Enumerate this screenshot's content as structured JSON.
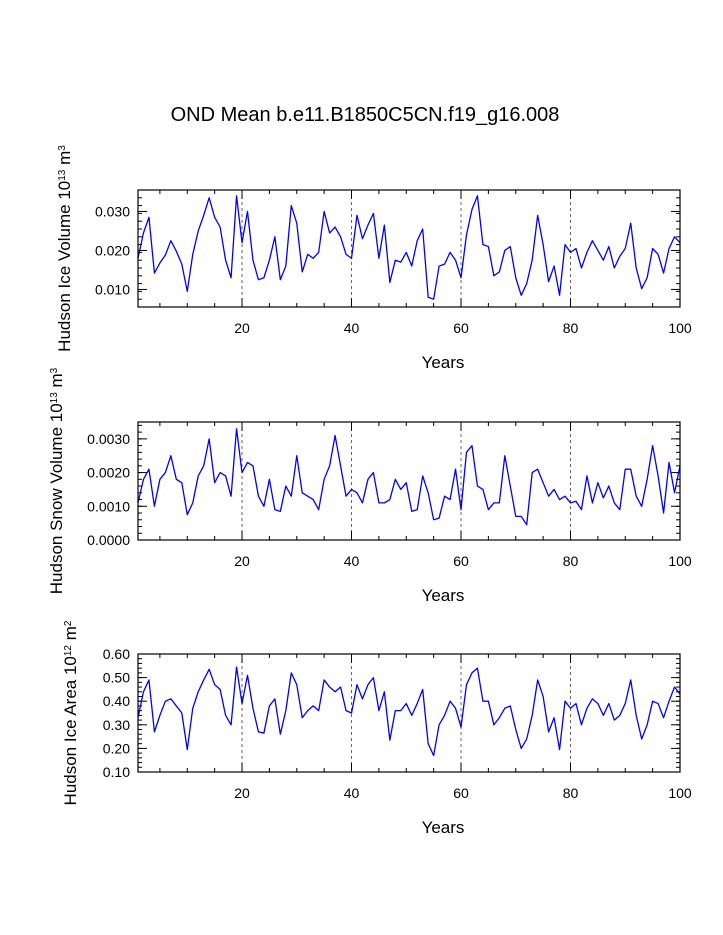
{
  "title": "OND Mean b.e11.B1850C5CN.f19_g16.008",
  "chart_data": [
    {
      "type": "line",
      "series": [
        {
          "name": "Hudson Ice Volume",
          "color": "#0000ff"
        }
      ],
      "ylabel_parts": [
        {
          "text": "Hudson Ice Volume 10"
        },
        {
          "text": "13",
          "sup": true
        },
        {
          "text": " m"
        },
        {
          "text": "3",
          "sup": true
        }
      ],
      "xlabel": "Years",
      "xlim": [
        1,
        100
      ],
      "ylim": [
        0.0055,
        0.0355
      ],
      "xticks": [
        20,
        40,
        60,
        80,
        100
      ],
      "xtick_labels": [
        "20",
        "40",
        "60",
        "80",
        "100"
      ],
      "yticks": [
        0.01,
        0.02,
        0.03
      ],
      "ytick_labels": [
        "0.010",
        "0.020",
        "0.030"
      ],
      "x": [
        1,
        2,
        3,
        4,
        5,
        6,
        7,
        8,
        9,
        10,
        11,
        12,
        13,
        14,
        15,
        16,
        17,
        18,
        19,
        20,
        21,
        22,
        23,
        24,
        25,
        26,
        27,
        28,
        29,
        30,
        31,
        32,
        33,
        34,
        35,
        36,
        37,
        38,
        39,
        40,
        41,
        42,
        43,
        44,
        45,
        46,
        47,
        48,
        49,
        50,
        51,
        52,
        53,
        54,
        55,
        56,
        57,
        58,
        59,
        60,
        61,
        62,
        63,
        64,
        65,
        66,
        67,
        68,
        69,
        70,
        71,
        72,
        73,
        74,
        75,
        76,
        77,
        78,
        79,
        80,
        81,
        82,
        83,
        84,
        85,
        86,
        87,
        88,
        89,
        90,
        91,
        92,
        93,
        94,
        95,
        96,
        97,
        98,
        99,
        100
      ],
      "values": [
        0.018,
        0.0245,
        0.0285,
        0.0142,
        0.0168,
        0.0188,
        0.0225,
        0.0198,
        0.0165,
        0.0095,
        0.019,
        0.025,
        0.029,
        0.0335,
        0.0285,
        0.026,
        0.0175,
        0.013,
        0.034,
        0.022,
        0.03,
        0.0175,
        0.0125,
        0.013,
        0.0175,
        0.0235,
        0.0125,
        0.016,
        0.0315,
        0.027,
        0.0145,
        0.019,
        0.018,
        0.0195,
        0.03,
        0.0245,
        0.026,
        0.0235,
        0.019,
        0.018,
        0.029,
        0.023,
        0.0265,
        0.0295,
        0.018,
        0.0265,
        0.0118,
        0.0175,
        0.017,
        0.0195,
        0.016,
        0.0225,
        0.0255,
        0.008,
        0.0075,
        0.016,
        0.0165,
        0.0195,
        0.0175,
        0.013,
        0.024,
        0.0305,
        0.034,
        0.0215,
        0.021,
        0.0135,
        0.0145,
        0.02,
        0.021,
        0.013,
        0.0085,
        0.0115,
        0.0175,
        0.029,
        0.0215,
        0.012,
        0.016,
        0.0085,
        0.0215,
        0.0195,
        0.0205,
        0.0155,
        0.0195,
        0.0225,
        0.02,
        0.0175,
        0.021,
        0.0155,
        0.0185,
        0.0205,
        0.027,
        0.0155,
        0.0102,
        0.013,
        0.0205,
        0.019,
        0.0142,
        0.0205,
        0.0235,
        0.022
      ]
    },
    {
      "type": "line",
      "series": [
        {
          "name": "Hudson Snow Volume",
          "color": "#0000ff"
        }
      ],
      "ylabel_parts": [
        {
          "text": "Hudson Snow Volume 10"
        },
        {
          "text": "13",
          "sup": true
        },
        {
          "text": " m"
        },
        {
          "text": "3",
          "sup": true
        }
      ],
      "xlabel": "Years",
      "xlim": [
        1,
        100
      ],
      "ylim": [
        0.0,
        0.0035
      ],
      "xticks": [
        20,
        40,
        60,
        80,
        100
      ],
      "xtick_labels": [
        "20",
        "40",
        "60",
        "80",
        "100"
      ],
      "yticks": [
        0.0,
        0.001,
        0.002,
        0.003
      ],
      "ytick_labels": [
        "0.0000",
        "0.0010",
        "0.0020",
        "0.0030"
      ],
      "x": [
        1,
        2,
        3,
        4,
        5,
        6,
        7,
        8,
        9,
        10,
        11,
        12,
        13,
        14,
        15,
        16,
        17,
        18,
        19,
        20,
        21,
        22,
        23,
        24,
        25,
        26,
        27,
        28,
        29,
        30,
        31,
        32,
        33,
        34,
        35,
        36,
        37,
        38,
        39,
        40,
        41,
        42,
        43,
        44,
        45,
        46,
        47,
        48,
        49,
        50,
        51,
        52,
        53,
        54,
        55,
        56,
        57,
        58,
        59,
        60,
        61,
        62,
        63,
        64,
        65,
        66,
        67,
        68,
        69,
        70,
        71,
        72,
        73,
        74,
        75,
        76,
        77,
        78,
        79,
        80,
        81,
        82,
        83,
        84,
        85,
        86,
        87,
        88,
        89,
        90,
        91,
        92,
        93,
        94,
        95,
        96,
        97,
        98,
        99,
        100
      ],
      "values": [
        0.0011,
        0.0018,
        0.0021,
        0.001,
        0.0018,
        0.002,
        0.0025,
        0.0018,
        0.0017,
        0.00075,
        0.0011,
        0.0019,
        0.0022,
        0.003,
        0.0017,
        0.002,
        0.0019,
        0.0013,
        0.0033,
        0.002,
        0.0023,
        0.0022,
        0.0013,
        0.001,
        0.0018,
        0.0009,
        0.00085,
        0.0016,
        0.0013,
        0.0025,
        0.0014,
        0.0013,
        0.0012,
        0.0009,
        0.0018,
        0.0022,
        0.0031,
        0.0022,
        0.0013,
        0.0015,
        0.0014,
        0.0011,
        0.0018,
        0.002,
        0.0011,
        0.0011,
        0.0012,
        0.0018,
        0.0015,
        0.0017,
        0.00085,
        0.0009,
        0.0019,
        0.0014,
        0.0006,
        0.00065,
        0.0013,
        0.0012,
        0.0021,
        0.0009,
        0.0026,
        0.0028,
        0.0016,
        0.0015,
        0.0009,
        0.0011,
        0.0011,
        0.0025,
        0.0016,
        0.0007,
        0.0007,
        0.00045,
        0.002,
        0.0021,
        0.0017,
        0.0013,
        0.0015,
        0.0012,
        0.0013,
        0.0011,
        0.00115,
        0.0009,
        0.0019,
        0.0011,
        0.0017,
        0.00125,
        0.0016,
        0.0011,
        0.0009,
        0.0021,
        0.0021,
        0.0013,
        0.001,
        0.0018,
        0.0028,
        0.0019,
        0.0008,
        0.0023,
        0.0014,
        0.0022
      ]
    },
    {
      "type": "line",
      "series": [
        {
          "name": "Hudson Ice Area",
          "color": "#0000ff"
        }
      ],
      "ylabel_parts": [
        {
          "text": "Hudson Ice Area 10"
        },
        {
          "text": "12",
          "sup": true
        },
        {
          "text": " m"
        },
        {
          "text": "2",
          "sup": true
        }
      ],
      "xlabel": "Years",
      "xlim": [
        1,
        100
      ],
      "ylim": [
        0.1,
        0.6
      ],
      "xticks": [
        20,
        40,
        60,
        80,
        100
      ],
      "xtick_labels": [
        "20",
        "40",
        "60",
        "80",
        "100"
      ],
      "yticks": [
        0.1,
        0.2,
        0.3,
        0.4,
        0.5,
        0.6
      ],
      "ytick_labels": [
        "0.10",
        "0.20",
        "0.30",
        "0.40",
        "0.50",
        "0.60"
      ],
      "x": [
        1,
        2,
        3,
        4,
        5,
        6,
        7,
        8,
        9,
        10,
        11,
        12,
        13,
        14,
        15,
        16,
        17,
        18,
        19,
        20,
        21,
        22,
        23,
        24,
        25,
        26,
        27,
        28,
        29,
        30,
        31,
        32,
        33,
        34,
        35,
        36,
        37,
        38,
        39,
        40,
        41,
        42,
        43,
        44,
        45,
        46,
        47,
        48,
        49,
        50,
        51,
        52,
        53,
        54,
        55,
        56,
        57,
        58,
        59,
        60,
        61,
        62,
        63,
        64,
        65,
        66,
        67,
        68,
        69,
        70,
        71,
        72,
        73,
        74,
        75,
        76,
        77,
        78,
        79,
        80,
        81,
        82,
        83,
        84,
        85,
        86,
        87,
        88,
        89,
        90,
        91,
        92,
        93,
        94,
        95,
        96,
        97,
        98,
        99,
        100
      ],
      "values": [
        0.33,
        0.44,
        0.49,
        0.27,
        0.34,
        0.4,
        0.41,
        0.38,
        0.35,
        0.195,
        0.37,
        0.44,
        0.49,
        0.535,
        0.47,
        0.45,
        0.34,
        0.3,
        0.545,
        0.39,
        0.51,
        0.37,
        0.27,
        0.265,
        0.38,
        0.41,
        0.26,
        0.36,
        0.52,
        0.47,
        0.33,
        0.36,
        0.38,
        0.36,
        0.49,
        0.46,
        0.44,
        0.46,
        0.36,
        0.35,
        0.47,
        0.41,
        0.47,
        0.5,
        0.36,
        0.44,
        0.235,
        0.36,
        0.36,
        0.39,
        0.34,
        0.39,
        0.45,
        0.22,
        0.17,
        0.3,
        0.34,
        0.4,
        0.37,
        0.29,
        0.47,
        0.52,
        0.54,
        0.4,
        0.4,
        0.3,
        0.33,
        0.37,
        0.38,
        0.28,
        0.2,
        0.24,
        0.34,
        0.49,
        0.42,
        0.27,
        0.33,
        0.195,
        0.4,
        0.37,
        0.39,
        0.3,
        0.37,
        0.41,
        0.39,
        0.34,
        0.39,
        0.32,
        0.34,
        0.39,
        0.49,
        0.34,
        0.24,
        0.3,
        0.4,
        0.39,
        0.33,
        0.4,
        0.46,
        0.43
      ]
    }
  ]
}
